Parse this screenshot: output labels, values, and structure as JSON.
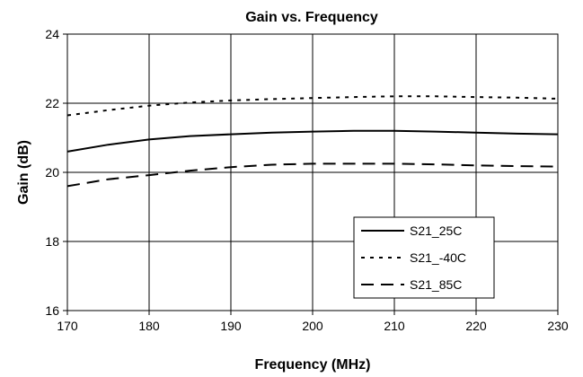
{
  "chart_data": {
    "type": "line",
    "title": "Gain vs. Frequency",
    "xlabel": "Frequency (MHz)",
    "ylabel": "Gain (dB)",
    "xlim": [
      170,
      230
    ],
    "ylim": [
      16,
      24
    ],
    "xticks": [
      170,
      180,
      190,
      200,
      210,
      220,
      230
    ],
    "yticks": [
      16,
      18,
      20,
      22,
      24
    ],
    "grid": true,
    "legend_position": "bottom-right",
    "series": [
      {
        "name": "S21_25C",
        "dash": "solid",
        "color": "#000000",
        "x": [
          170,
          175,
          180,
          185,
          190,
          195,
          200,
          205,
          210,
          215,
          220,
          225,
          230
        ],
        "y": [
          20.6,
          20.8,
          20.95,
          21.05,
          21.1,
          21.15,
          21.18,
          21.2,
          21.2,
          21.18,
          21.15,
          21.12,
          21.1
        ]
      },
      {
        "name": "S21_-40C",
        "dash": "dotted",
        "color": "#000000",
        "x": [
          170,
          175,
          180,
          185,
          190,
          195,
          200,
          205,
          210,
          215,
          220,
          225,
          230
        ],
        "y": [
          21.65,
          21.8,
          21.93,
          22.02,
          22.08,
          22.12,
          22.15,
          22.18,
          22.2,
          22.2,
          22.18,
          22.16,
          22.13
        ]
      },
      {
        "name": "S21_85C",
        "dash": "dashed",
        "color": "#000000",
        "x": [
          170,
          175,
          180,
          185,
          190,
          195,
          200,
          205,
          210,
          215,
          220,
          225,
          230
        ],
        "y": [
          19.6,
          19.8,
          19.92,
          20.05,
          20.15,
          20.22,
          20.25,
          20.25,
          20.25,
          20.23,
          20.2,
          20.18,
          20.17
        ]
      }
    ]
  }
}
